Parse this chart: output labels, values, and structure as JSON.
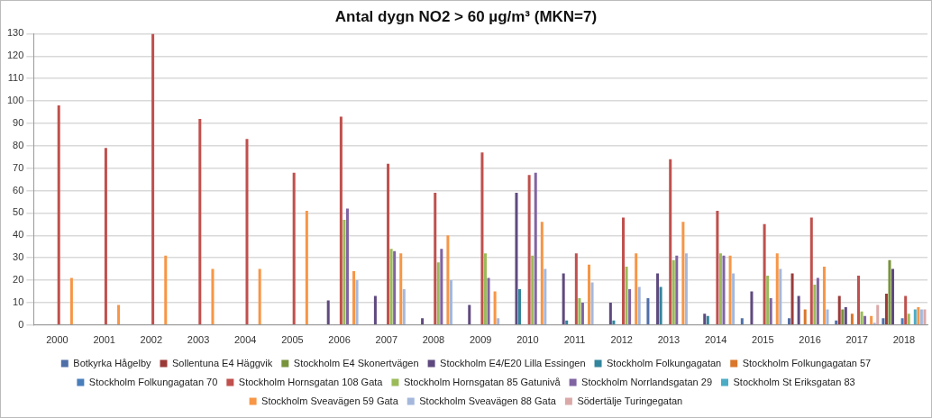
{
  "chart_data": {
    "type": "bar",
    "title": "Antal dygn NO2 > 60 µg/m³ (MKN=7)",
    "categories": [
      "2000",
      "2001",
      "2002",
      "2003",
      "2004",
      "2005",
      "2006",
      "2007",
      "2008",
      "2009",
      "2010",
      "2011",
      "2012",
      "2013",
      "2014",
      "2015",
      "2016",
      "2017",
      "2018"
    ],
    "series": [
      {
        "name": "Botkyrka Hågelby",
        "color": "#4f6fa8",
        "values": [
          null,
          null,
          null,
          null,
          null,
          null,
          null,
          null,
          null,
          null,
          null,
          null,
          null,
          12,
          null,
          3,
          3,
          2,
          3
        ]
      },
      {
        "name": "Sollentuna E4 Häggvik",
        "color": "#9b3b38",
        "values": [
          null,
          null,
          null,
          null,
          null,
          null,
          null,
          null,
          null,
          null,
          null,
          null,
          null,
          null,
          null,
          null,
          23,
          13,
          14
        ]
      },
      {
        "name": "Stockholm E4 Skonertvägen",
        "color": "#77933c",
        "values": [
          null,
          null,
          null,
          null,
          null,
          null,
          null,
          null,
          null,
          null,
          null,
          null,
          null,
          null,
          null,
          null,
          null,
          7,
          29
        ]
      },
      {
        "name": "Stockholm E4/E20 Lilla Essingen",
        "color": "#5f4a7f",
        "values": [
          null,
          null,
          null,
          null,
          null,
          null,
          11,
          13,
          3,
          9,
          59,
          23,
          10,
          23,
          5,
          15,
          13,
          8,
          25
        ]
      },
      {
        "name": "Stockholm Folkungagatan",
        "color": "#31859c",
        "values": [
          null,
          null,
          null,
          null,
          null,
          null,
          null,
          null,
          null,
          null,
          16,
          2,
          2,
          17,
          4,
          null,
          null,
          null,
          null
        ]
      },
      {
        "name": "Stockholm Folkungagatan 57",
        "color": "#d9772b",
        "values": [
          null,
          null,
          null,
          null,
          null,
          null,
          null,
          null,
          null,
          null,
          null,
          null,
          null,
          null,
          null,
          null,
          7,
          5,
          null
        ]
      },
      {
        "name": "Stockholm Folkungagatan 70",
        "color": "#4a7ebb",
        "values": [
          null,
          null,
          null,
          null,
          null,
          null,
          null,
          null,
          null,
          null,
          null,
          null,
          null,
          null,
          null,
          null,
          null,
          null,
          3
        ]
      },
      {
        "name": "Stockholm Hornsgatan 108 Gata",
        "color": "#c0504d",
        "values": [
          98,
          79,
          130,
          92,
          83,
          68,
          93,
          72,
          59,
          77,
          67,
          32,
          48,
          74,
          51,
          45,
          48,
          22,
          13
        ]
      },
      {
        "name": "Stockholm Hornsgatan 85 Gatunivå",
        "color": "#9bbb59",
        "values": [
          null,
          null,
          null,
          null,
          null,
          null,
          47,
          34,
          28,
          32,
          31,
          12,
          26,
          29,
          32,
          22,
          18,
          6,
          5
        ]
      },
      {
        "name": "Stockholm Norrlandsgatan 29",
        "color": "#8064a2",
        "values": [
          null,
          null,
          null,
          null,
          null,
          null,
          52,
          33,
          34,
          21,
          68,
          10,
          16,
          31,
          31,
          12,
          21,
          4,
          null
        ]
      },
      {
        "name": "Stockholm St Eriksgatan 83",
        "color": "#4bacc6",
        "values": [
          null,
          null,
          null,
          null,
          null,
          null,
          null,
          null,
          null,
          null,
          null,
          null,
          null,
          null,
          null,
          null,
          null,
          null,
          7
        ]
      },
      {
        "name": "Stockholm Sveavägen 59 Gata",
        "color": "#f79646",
        "values": [
          21,
          9,
          31,
          25,
          25,
          51,
          24,
          32,
          40,
          15,
          46,
          27,
          32,
          46,
          31,
          32,
          26,
          4,
          8
        ]
      },
      {
        "name": "Stockholm Sveavägen 88 Gata",
        "color": "#a5b8dc",
        "values": [
          null,
          null,
          null,
          null,
          null,
          null,
          20,
          16,
          20,
          3,
          25,
          19,
          17,
          32,
          23,
          25,
          7,
          1,
          7
        ]
      },
      {
        "name": "Södertälje Turingegatan",
        "color": "#dba8a8",
        "values": [
          null,
          null,
          null,
          null,
          null,
          null,
          null,
          null,
          null,
          null,
          null,
          null,
          null,
          null,
          null,
          null,
          null,
          9,
          7
        ]
      }
    ],
    "ylim": [
      0,
      130
    ],
    "yticks": [
      0,
      10,
      20,
      30,
      40,
      50,
      60,
      70,
      80,
      90,
      100,
      110,
      120,
      130
    ],
    "grid": "y",
    "legend": "bottom"
  }
}
